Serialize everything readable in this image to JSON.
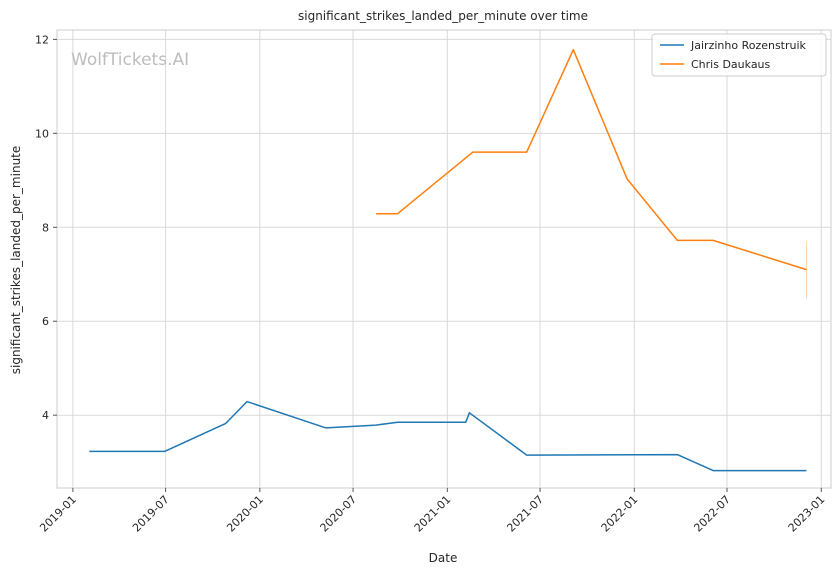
{
  "watermark": "WolfTickets.AI",
  "chart_data": {
    "type": "line",
    "title": "significant_strikes_landed_per_minute over time",
    "xlabel": "Date",
    "ylabel": "significant_strikes_landed_per_minute",
    "xlim": [
      "2018-12-01",
      "2023-01-20"
    ],
    "ylim": [
      2.45,
      12.2
    ],
    "xticks": [
      "2019-01",
      "2019-07",
      "2020-01",
      "2020-07",
      "2021-01",
      "2021-07",
      "2022-01",
      "2022-07",
      "2023-01"
    ],
    "yticks": [
      4,
      6,
      8,
      10,
      12
    ],
    "grid": true,
    "legend_position": "top-right",
    "series": [
      {
        "name": "Jairzinho Rozenstruik",
        "color": "#1f77b4",
        "points": [
          [
            "2019-02-02",
            3.23
          ],
          [
            "2019-06-29",
            3.23
          ],
          [
            "2019-10-26",
            3.82
          ],
          [
            "2019-12-07",
            4.29
          ],
          [
            "2020-05-09",
            3.73
          ],
          [
            "2020-08-15",
            3.79
          ],
          [
            "2020-09-26",
            3.85
          ],
          [
            "2021-02-06",
            3.85
          ],
          [
            "2021-02-13",
            4.05
          ],
          [
            "2021-06-05",
            3.15
          ],
          [
            "2022-03-26",
            3.16
          ],
          [
            "2022-06-04",
            2.82
          ],
          [
            "2022-12-03",
            2.82
          ]
        ]
      },
      {
        "name": "Chris Daukaus",
        "color": "#ff7f0e",
        "points": [
          [
            "2020-08-15",
            8.29
          ],
          [
            "2020-09-26",
            8.29
          ],
          [
            "2021-02-20",
            9.6
          ],
          [
            "2021-06-05",
            9.6
          ],
          [
            "2021-09-04",
            11.78
          ],
          [
            "2021-12-18",
            9.03
          ],
          [
            "2022-03-26",
            7.72
          ],
          [
            "2022-06-04",
            7.72
          ],
          [
            "2022-12-03",
            7.1
          ]
        ]
      }
    ],
    "error_bar": {
      "series": "Chris Daukaus",
      "x": "2022-12-03",
      "low": 6.48,
      "high": 7.7
    }
  }
}
